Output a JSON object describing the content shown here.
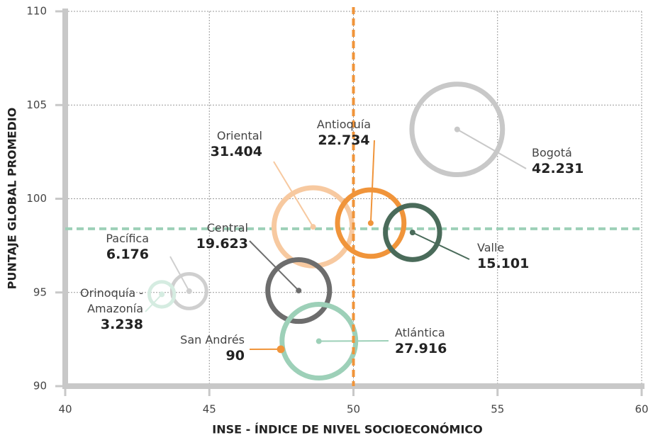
{
  "chart_data": {
    "type": "bubble",
    "xlabel": "INSE - ÍNDICE DE NIVEL SOCIOECONÓMICO",
    "ylabel": "PUNTAJE GLOBAL PROMEDIO",
    "names": [
      "Bogotá",
      "Oriental",
      "Antioquía",
      "Valle",
      "Central",
      "Atlántica",
      "Pacífica",
      "Orinoquía - Amazonía",
      "San Andrés"
    ],
    "x": [
      53.6,
      48.6,
      50.6,
      52.05,
      48.1,
      48.8,
      44.3,
      43.35,
      47.48
    ],
    "y": [
      103.7,
      98.5,
      98.7,
      98.2,
      95.1,
      92.4,
      95.07,
      94.9,
      91.97
    ],
    "sizes": [
      42231,
      31404,
      22734,
      15101,
      19623,
      27916,
      6176,
      3238,
      90
    ],
    "value_labels": [
      "42.231",
      "31.404",
      "22.734",
      "15.101",
      "19.623",
      "27.916",
      "6.176",
      "3.238",
      "90"
    ],
    "colors": [
      "#c8c8c8",
      "#f7c9a0",
      "#f0943a",
      "#4a6b5a",
      "#6d6d6d",
      "#9dd0b8",
      "#cfcfcf",
      "#d5ece1",
      "#f0943a"
    ],
    "reference_x": 50,
    "reference_x_color": "#f0943a",
    "reference_y": 98.4,
    "reference_y_color": "#9dd0b8",
    "xlim": [
      40,
      60
    ],
    "xticks": [
      40,
      45,
      50,
      55,
      60
    ],
    "ylim": [
      90,
      110
    ],
    "yticks": [
      90,
      95,
      100,
      105,
      110
    ],
    "grid": true
  }
}
